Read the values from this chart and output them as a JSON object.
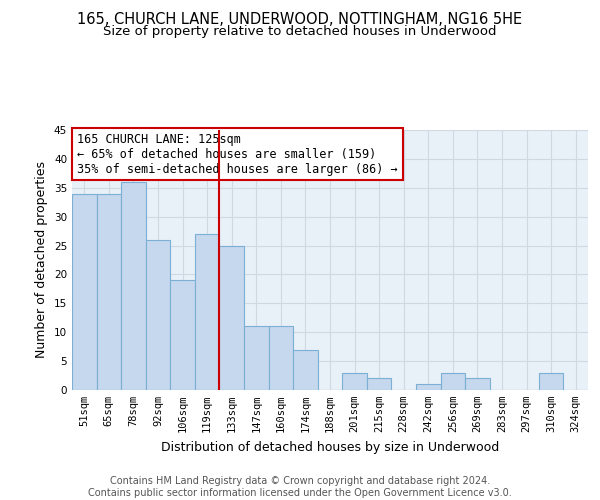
{
  "title": "165, CHURCH LANE, UNDERWOOD, NOTTINGHAM, NG16 5HE",
  "subtitle": "Size of property relative to detached houses in Underwood",
  "bar_labels": [
    "51sqm",
    "65sqm",
    "78sqm",
    "92sqm",
    "106sqm",
    "119sqm",
    "133sqm",
    "147sqm",
    "160sqm",
    "174sqm",
    "188sqm",
    "201sqm",
    "215sqm",
    "228sqm",
    "242sqm",
    "256sqm",
    "269sqm",
    "283sqm",
    "297sqm",
    "310sqm",
    "324sqm"
  ],
  "bar_values": [
    34,
    34,
    36,
    26,
    19,
    27,
    25,
    11,
    11,
    7,
    0,
    3,
    2,
    0,
    1,
    3,
    2,
    0,
    0,
    3,
    0
  ],
  "bar_color": "#c5d8ed",
  "bar_edge_color": "#7bafd4",
  "ylim": [
    0,
    45
  ],
  "yticks": [
    0,
    5,
    10,
    15,
    20,
    25,
    30,
    35,
    40,
    45
  ],
  "ylabel": "Number of detached properties",
  "xlabel": "Distribution of detached houses by size in Underwood",
  "ref_line_x": 5.5,
  "ref_line_color": "#cc0000",
  "annotation_text": "165 CHURCH LANE: 125sqm\n← 65% of detached houses are smaller (159)\n35% of semi-detached houses are larger (86) →",
  "annotation_box_color": "#ffffff",
  "annotation_box_edge_color": "#cc0000",
  "footer_line1": "Contains HM Land Registry data © Crown copyright and database right 2024.",
  "footer_line2": "Contains public sector information licensed under the Open Government Licence v3.0.",
  "grid_color": "#d0d8e4",
  "background_color": "#e8f0f8",
  "title_fontsize": 10.5,
  "subtitle_fontsize": 9.5,
  "axis_label_fontsize": 9,
  "tick_fontsize": 7.5,
  "annotation_fontsize": 8.5,
  "footer_fontsize": 7
}
